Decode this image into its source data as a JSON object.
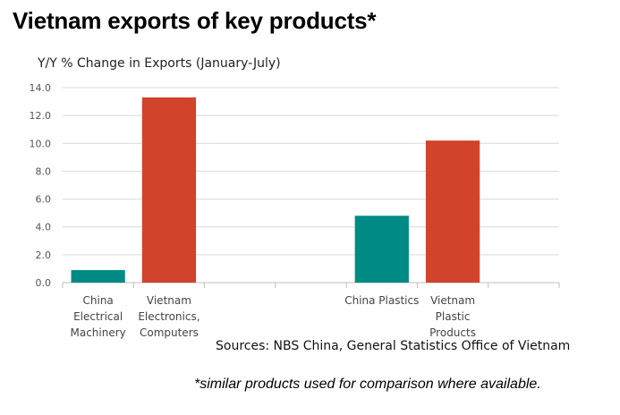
{
  "chart_data": {
    "type": "bar",
    "title": "Vietnam exports of key products*",
    "ylabel": "Y/Y % Change in Exports (January-July)",
    "xlabel": "",
    "ylim": [
      0,
      14
    ],
    "yticks": [
      "0.0",
      "2.0",
      "4.0",
      "6.0",
      "8.0",
      "10.0",
      "12.0",
      "14.0"
    ],
    "grid": true,
    "categories": [
      [
        "China",
        "Electrical",
        "Machinery"
      ],
      [
        "Vietnam",
        "Electronics,",
        "Computers"
      ],
      [
        ""
      ],
      [
        ""
      ],
      [
        "China Plastics"
      ],
      [
        "Vietnam",
        "Plastic",
        "Products"
      ],
      [
        ""
      ]
    ],
    "values": [
      0.9,
      13.3,
      null,
      null,
      4.8,
      10.2,
      null
    ],
    "bar_colors": [
      "#008b84",
      "#d1432a",
      null,
      null,
      "#008b84",
      "#d1432a",
      null
    ],
    "source": "Sources: NBS China, General Statistics Office of Vietnam",
    "footnote": "*similar products used for comparison where available."
  }
}
